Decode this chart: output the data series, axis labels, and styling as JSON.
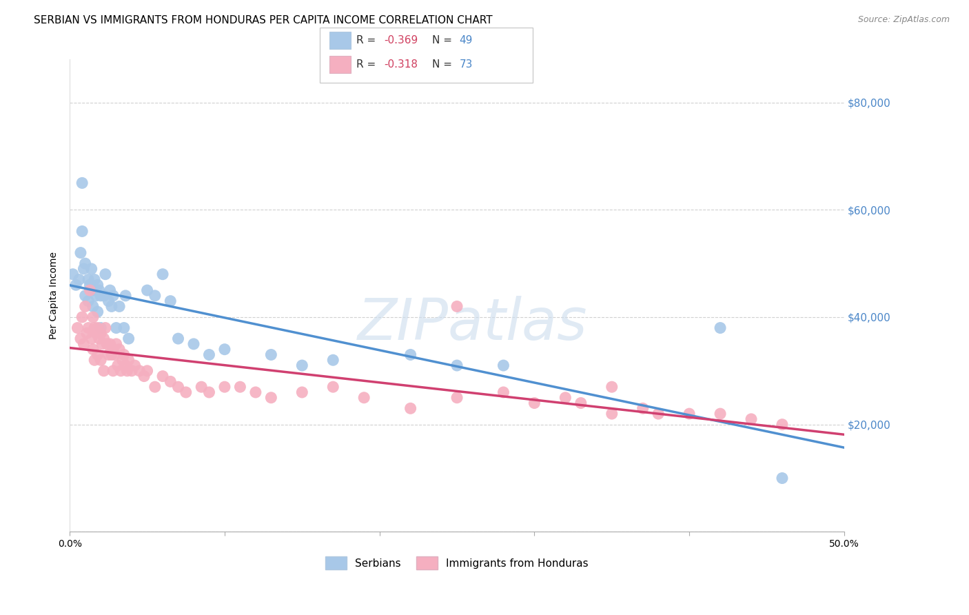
{
  "title": "SERBIAN VS IMMIGRANTS FROM HONDURAS PER CAPITA INCOME CORRELATION CHART",
  "source": "Source: ZipAtlas.com",
  "ylabel": "Per Capita Income",
  "xlim": [
    0.0,
    0.5
  ],
  "ylim": [
    0,
    88000
  ],
  "yticks": [
    0,
    20000,
    40000,
    60000,
    80000
  ],
  "ytick_labels": [
    "",
    "$20,000",
    "$40,000",
    "$60,000",
    "$80,000"
  ],
  "xticks": [
    0.0,
    0.1,
    0.2,
    0.3,
    0.4,
    0.5
  ],
  "xtick_labels": [
    "0.0%",
    "",
    "",
    "",
    "",
    "50.0%"
  ],
  "legend_series": [
    "Serbians",
    "Immigrants from Honduras"
  ],
  "serbian_color": "#a8c8e8",
  "honduras_color": "#f5afc0",
  "serbian_line_color": "#5090d0",
  "honduras_line_color": "#d04070",
  "watermark": "ZIPatlas",
  "background_color": "#ffffff",
  "grid_color": "#d0d0d0",
  "r_value_color": "#d04060",
  "n_value_color": "#4a86c8",
  "serbian_r": "-0.369",
  "serbian_n": "49",
  "honduras_r": "-0.318",
  "honduras_n": "73",
  "serbian_x": [
    0.002,
    0.004,
    0.006,
    0.007,
    0.008,
    0.008,
    0.009,
    0.01,
    0.01,
    0.012,
    0.012,
    0.013,
    0.014,
    0.015,
    0.015,
    0.016,
    0.017,
    0.018,
    0.018,
    0.019,
    0.02,
    0.02,
    0.022,
    0.023,
    0.025,
    0.026,
    0.027,
    0.028,
    0.03,
    0.032,
    0.035,
    0.036,
    0.038,
    0.05,
    0.055,
    0.06,
    0.065,
    0.07,
    0.08,
    0.09,
    0.1,
    0.13,
    0.15,
    0.17,
    0.22,
    0.25,
    0.28,
    0.42,
    0.46
  ],
  "serbian_y": [
    48000,
    46000,
    47000,
    52000,
    65000,
    56000,
    49000,
    50000,
    44000,
    47000,
    43000,
    46000,
    49000,
    45000,
    42000,
    47000,
    44000,
    46000,
    41000,
    45000,
    44000,
    38000,
    44000,
    48000,
    43000,
    45000,
    42000,
    44000,
    38000,
    42000,
    38000,
    44000,
    36000,
    45000,
    44000,
    48000,
    43000,
    36000,
    35000,
    33000,
    34000,
    33000,
    31000,
    32000,
    33000,
    31000,
    31000,
    38000,
    10000
  ],
  "honduras_x": [
    0.005,
    0.007,
    0.008,
    0.009,
    0.01,
    0.011,
    0.012,
    0.013,
    0.014,
    0.015,
    0.015,
    0.016,
    0.016,
    0.017,
    0.018,
    0.018,
    0.019,
    0.02,
    0.02,
    0.021,
    0.022,
    0.022,
    0.023,
    0.024,
    0.025,
    0.026,
    0.027,
    0.028,
    0.028,
    0.029,
    0.03,
    0.031,
    0.032,
    0.033,
    0.034,
    0.035,
    0.036,
    0.037,
    0.038,
    0.04,
    0.042,
    0.045,
    0.048,
    0.05,
    0.055,
    0.06,
    0.065,
    0.07,
    0.075,
    0.085,
    0.09,
    0.1,
    0.11,
    0.12,
    0.13,
    0.15,
    0.17,
    0.19,
    0.22,
    0.25,
    0.28,
    0.3,
    0.32,
    0.33,
    0.35,
    0.37,
    0.38,
    0.4,
    0.42,
    0.44,
    0.46,
    0.25,
    0.35
  ],
  "honduras_y": [
    38000,
    36000,
    40000,
    35000,
    42000,
    37000,
    38000,
    45000,
    36000,
    40000,
    34000,
    38000,
    32000,
    37000,
    38000,
    33000,
    36000,
    37000,
    32000,
    35000,
    36000,
    30000,
    38000,
    35000,
    33000,
    35000,
    33000,
    34000,
    30000,
    33000,
    35000,
    31000,
    34000,
    30000,
    32000,
    33000,
    31000,
    30000,
    32000,
    30000,
    31000,
    30000,
    29000,
    30000,
    27000,
    29000,
    28000,
    27000,
    26000,
    27000,
    26000,
    27000,
    27000,
    26000,
    25000,
    26000,
    27000,
    25000,
    23000,
    25000,
    26000,
    24000,
    25000,
    24000,
    22000,
    23000,
    22000,
    22000,
    22000,
    21000,
    20000,
    42000,
    27000
  ]
}
